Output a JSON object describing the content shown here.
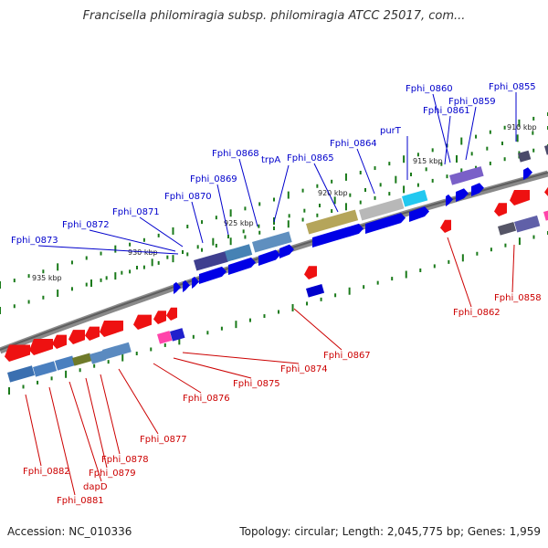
{
  "title": "Francisella philomiragia subsp. philomiragia ATCC 25017, com...",
  "footer": {
    "accession": "Accession: NC_010336",
    "topology": "Topology: circular; Length: 2,045,775 bp; Genes: 1,959"
  },
  "colors": {
    "forward_label": "#0000cc",
    "reverse_label": "#cc0000",
    "backbone": "#7a7a7a",
    "tick": "#1a7a1a"
  },
  "kbp_labels": [
    "935 kbp",
    "930 kbp",
    "925 kbp",
    "920 kbp",
    "915 kbp",
    "910 kbp"
  ],
  "forward_genes": [
    "Fphi_0873",
    "Fphi_0872",
    "Fphi_0871",
    "Fphi_0870",
    "Fphi_0869",
    "Fphi_0868",
    "trpA",
    "Fphi_0865",
    "Fphi_0864",
    "purT",
    "Fphi_0861",
    "Fphi_0860",
    "Fphi_0859",
    "Fphi_0855"
  ],
  "reverse_genes": [
    "Fphi_0858",
    "Fphi_0862",
    "Fphi_0867",
    "Fphi_0874",
    "Fphi_0875",
    "Fphi_0876",
    "Fphi_0877",
    "Fphi_0878",
    "Fphi_0879",
    "dapD",
    "Fphi_0881",
    "Fphi_0882"
  ]
}
